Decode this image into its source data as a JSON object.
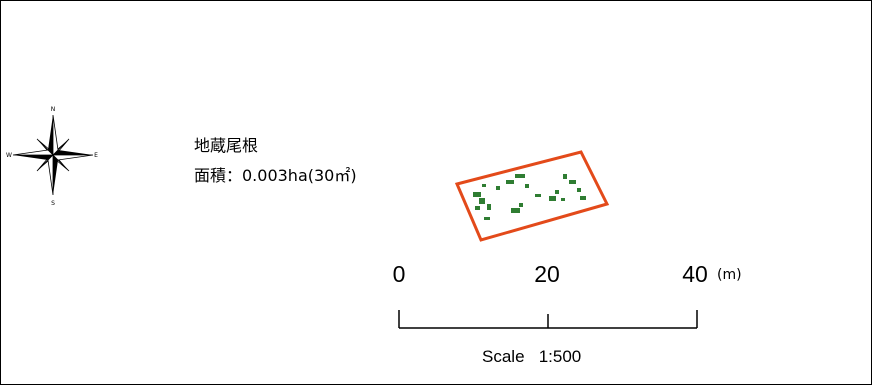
{
  "map": {
    "site_name": "地蔵尾根",
    "area_text": "面積：0.003ha(30㎡)",
    "plot_outline_color": "#e34a1a",
    "vegetation_color": "#2f7d32"
  },
  "compass": {
    "north": "N",
    "south": "S",
    "east": "E",
    "west": "W"
  },
  "scalebar": {
    "ticks": [
      "0",
      "20",
      "40"
    ],
    "unit": "(m)",
    "scale_label": "Scale",
    "scale_ratio": "1:500"
  }
}
